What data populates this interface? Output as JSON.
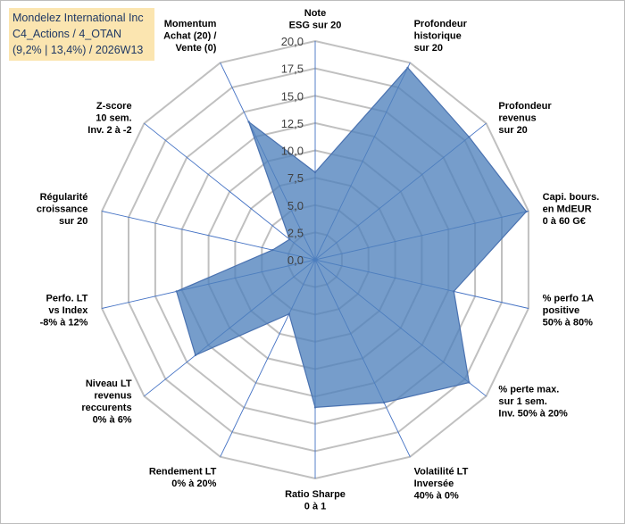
{
  "title": {
    "line1": "Mondelez International Inc",
    "line2": "C4_Actions / 4_OTAN",
    "line3": "(9,2% | 13,4%) / 2026W13"
  },
  "colors": {
    "fill": "#4f81bd",
    "stroke": "#4a72b0",
    "grid": "#c0c0c0",
    "spoke": "#4472c4",
    "title_bg": "#fbe5b0",
    "title_text": "#1f3864"
  },
  "chart_data": {
    "type": "radar",
    "rmin": 0,
    "rmax": 20,
    "step": 2.5,
    "tick_labels": [
      "0,0",
      "2,5",
      "5,0",
      "7,5",
      "10,0",
      "12,5",
      "15,0",
      "17,5",
      "20,0"
    ],
    "axes": [
      {
        "label": [
          "Note",
          "ESG sur 20"
        ],
        "value": 8
      },
      {
        "label": [
          "Profondeur",
          "historique",
          "sur 20"
        ],
        "value": 19.5
      },
      {
        "label": [
          "Profondeur",
          "revenus",
          "sur 20"
        ],
        "value": 18
      },
      {
        "label": [
          "Capi. bours.",
          "en MdEUR",
          "0 à 60 G€"
        ],
        "value": 19.8
      },
      {
        "label": [
          "% perfo 1A",
          "positive",
          "50% à 80%"
        ],
        "value": 13
      },
      {
        "label": [
          "% perte max.",
          "sur 1 sem.",
          "Inv. 50% à 20%"
        ],
        "value": 18
      },
      {
        "label": [
          "Volatilité LT",
          "Inversée",
          "40% à 0%"
        ],
        "value": 14.5
      },
      {
        "label": [
          "Ratio Sharpe",
          "0 à 1"
        ],
        "value": 13.5
      },
      {
        "label": [
          "Rendement LT",
          "0% à 20%"
        ],
        "value": 5.5
      },
      {
        "label": [
          "Niveau LT",
          "revenus",
          "reccurents",
          "0% à 6%"
        ],
        "value": 14
      },
      {
        "label": [
          "Perfo. LT",
          "vs Index",
          "-8% à 12%"
        ],
        "value": 13
      },
      {
        "label": [
          "Régularité",
          "croissance",
          "sur 20"
        ],
        "value": 4
      },
      {
        "label": [
          "Z-score",
          "10 sem.",
          "Inv. 2 à -2"
        ],
        "value": 3
      },
      {
        "label": [
          "Momentum",
          "Achat (20) /",
          "Vente (0)"
        ],
        "value": 14
      }
    ]
  }
}
